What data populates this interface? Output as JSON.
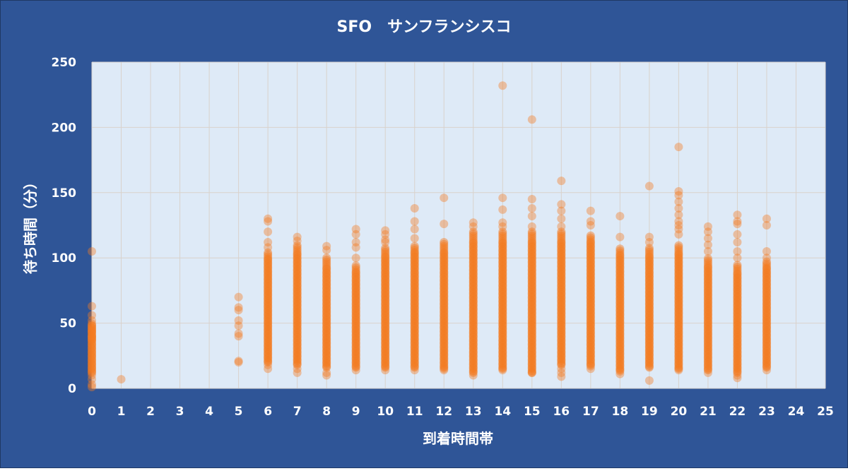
{
  "chart_data": {
    "type": "scatter",
    "title": "SFO　サンフランシスコ",
    "xlabel": "到着時間帯",
    "ylabel": "待ち時間（分）",
    "xlim": [
      0,
      25
    ],
    "ylim": [
      0,
      250
    ],
    "x_ticks": [
      0,
      1,
      2,
      3,
      4,
      5,
      6,
      7,
      8,
      9,
      10,
      11,
      12,
      13,
      14,
      15,
      16,
      17,
      18,
      19,
      20,
      21,
      22,
      23,
      24,
      25
    ],
    "y_ticks": [
      0,
      50,
      100,
      150,
      200,
      250
    ],
    "grid": true,
    "colors": {
      "background": "#2F5597",
      "plot_area": "#DEEAF7",
      "gridline": "#D9D2CC",
      "point": "#F47B20",
      "text": "#FFFFFF"
    },
    "series": [
      {
        "points_by_hour": [
          {
            "x": 0,
            "dense": [
              12,
              50
            ],
            "y": [
              105,
              63,
              56,
              52,
              48,
              46,
              44,
              40,
              38,
              10,
              7,
              3,
              1
            ]
          },
          {
            "x": 1,
            "y": [
              7
            ]
          },
          {
            "x": 5,
            "y": [
              70,
              62,
              60,
              52,
              48,
              42,
              40,
              21,
              20
            ]
          },
          {
            "x": 6,
            "dense": [
              20,
              105
            ],
            "y": [
              130,
              128,
              120,
              112,
              108,
              18,
              15
            ]
          },
          {
            "x": 7,
            "dense": [
              18,
              110
            ],
            "y": [
              116,
              113,
              15,
              12
            ]
          },
          {
            "x": 8,
            "dense": [
              16,
              100
            ],
            "y": [
              109,
              106,
              12,
              10
            ]
          },
          {
            "x": 9,
            "dense": [
              16,
              95
            ],
            "y": [
              122,
              118,
              112,
              108,
              100,
              14
            ]
          },
          {
            "x": 10,
            "dense": [
              16,
              108
            ],
            "y": [
              121,
              118,
              114,
              112,
              14
            ]
          },
          {
            "x": 11,
            "dense": [
              16,
              110
            ],
            "y": [
              138,
              128,
              122,
              115,
              14
            ]
          },
          {
            "x": 12,
            "dense": [
              16,
              112
            ],
            "y": [
              146,
              126,
              15,
              14
            ]
          },
          {
            "x": 13,
            "dense": [
              12,
              120
            ],
            "y": [
              127,
              124,
              10
            ]
          },
          {
            "x": 14,
            "dense": [
              15,
              120
            ],
            "y": [
              232,
              146,
              137,
              127,
              124,
              14
            ]
          },
          {
            "x": 15,
            "dense": [
              12,
              120
            ],
            "y": [
              206,
              145,
              138,
              132,
              124,
              12
            ]
          },
          {
            "x": 16,
            "dense": [
              18,
              120
            ],
            "y": [
              159,
              141,
              136,
              130,
              124,
              15,
              12,
              9
            ]
          },
          {
            "x": 17,
            "dense": [
              18,
              118
            ],
            "y": [
              136,
              128,
              125,
              17,
              15
            ]
          },
          {
            "x": 18,
            "dense": [
              14,
              108
            ],
            "y": [
              132,
              116,
              13,
              11
            ]
          },
          {
            "x": 19,
            "dense": [
              16,
              108
            ],
            "y": [
              155,
              116,
              112,
              6
            ]
          },
          {
            "x": 20,
            "dense": [
              15,
              110
            ],
            "y": [
              185,
              151,
              148,
              143,
              138,
              133,
              128,
              125,
              122,
              118,
              14
            ]
          },
          {
            "x": 21,
            "dense": [
              14,
              100
            ],
            "y": [
              124,
              120,
              115,
              110,
              105,
              12
            ]
          },
          {
            "x": 22,
            "dense": [
              12,
              95
            ],
            "y": [
              133,
              128,
              126,
              118,
              112,
              105,
              100,
              10,
              8
            ]
          },
          {
            "x": 23,
            "dense": [
              16,
              98
            ],
            "y": [
              130,
              125,
              105,
              100,
              14
            ]
          }
        ]
      }
    ]
  }
}
